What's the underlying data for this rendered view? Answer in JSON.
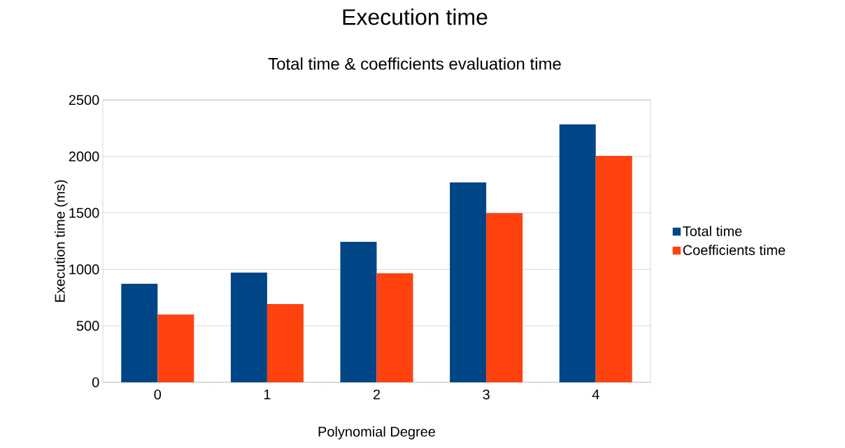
{
  "chart_data": {
    "type": "bar",
    "title": "Execution time",
    "subtitle": "Total time & coefficients evaluation time",
    "xlabel": "Polynomial Degree",
    "ylabel": "Execution time (ms)",
    "categories": [
      "0",
      "1",
      "2",
      "3",
      "4"
    ],
    "series": [
      {
        "name": "Total time",
        "color": "#004586",
        "values": [
          872,
          971,
          1244,
          1770,
          2283
        ]
      },
      {
        "name": "Coefficients time",
        "color": "#ff420e",
        "values": [
          600,
          693,
          965,
          1497,
          2005
        ]
      }
    ],
    "ylim": [
      0,
      2500
    ],
    "yticks": [
      0,
      500,
      1000,
      1500,
      2000,
      2500
    ],
    "grid": "y",
    "legend": "right"
  }
}
